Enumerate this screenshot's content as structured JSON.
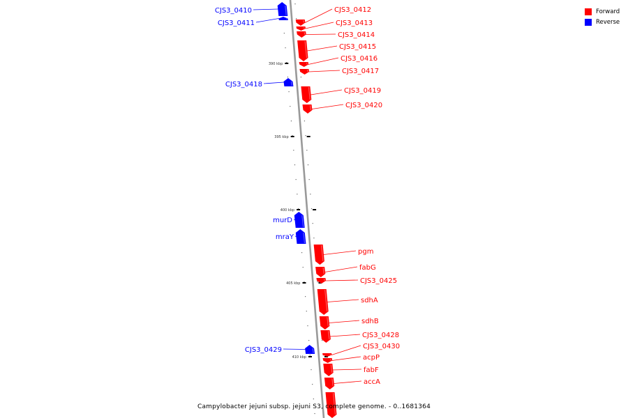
{
  "caption": "Campylobacter jejuni subsp. jejuni S3, complete genome. - 0..1681364",
  "colors": {
    "forward": "#ff0000",
    "reverse": "#0000ff",
    "backbone": "#999999"
  },
  "legend": [
    {
      "label": "Forward",
      "color": "#ff0000"
    },
    {
      "label": "Reverse",
      "color": "#0000ff"
    }
  ],
  "ticks": [
    {
      "label": "390 kbp"
    },
    {
      "label": "395 kbp"
    },
    {
      "label": "400 kbp"
    },
    {
      "label": "405 kbp"
    },
    {
      "label": "410 kbp"
    }
  ],
  "genes": [
    {
      "name": "CJS3_0410",
      "strand": "reverse"
    },
    {
      "name": "CJS3_0411",
      "strand": "reverse"
    },
    {
      "name": "CJS3_0412",
      "strand": "forward"
    },
    {
      "name": "CJS3_0413",
      "strand": "forward"
    },
    {
      "name": "CJS3_0414",
      "strand": "forward"
    },
    {
      "name": "CJS3_0415",
      "strand": "forward"
    },
    {
      "name": "CJS3_0416",
      "strand": "forward"
    },
    {
      "name": "CJS3_0417",
      "strand": "forward"
    },
    {
      "name": "CJS3_0418",
      "strand": "reverse"
    },
    {
      "name": "CJS3_0419",
      "strand": "forward"
    },
    {
      "name": "CJS3_0420",
      "strand": "forward"
    },
    {
      "name": "murD",
      "strand": "reverse"
    },
    {
      "name": "mraY",
      "strand": "reverse"
    },
    {
      "name": "pgm",
      "strand": "forward"
    },
    {
      "name": "fabG",
      "strand": "forward"
    },
    {
      "name": "CJS3_0425",
      "strand": "forward"
    },
    {
      "name": "sdhA",
      "strand": "forward"
    },
    {
      "name": "sdhB",
      "strand": "forward"
    },
    {
      "name": "CJS3_0428",
      "strand": "forward"
    },
    {
      "name": "CJS3_0429",
      "strand": "reverse"
    },
    {
      "name": "CJS3_0430",
      "strand": "forward"
    },
    {
      "name": "acpP",
      "strand": "forward"
    },
    {
      "name": "fabF",
      "strand": "forward"
    },
    {
      "name": "accA",
      "strand": "forward"
    },
    {
      "name": "",
      "strand": "forward"
    }
  ]
}
